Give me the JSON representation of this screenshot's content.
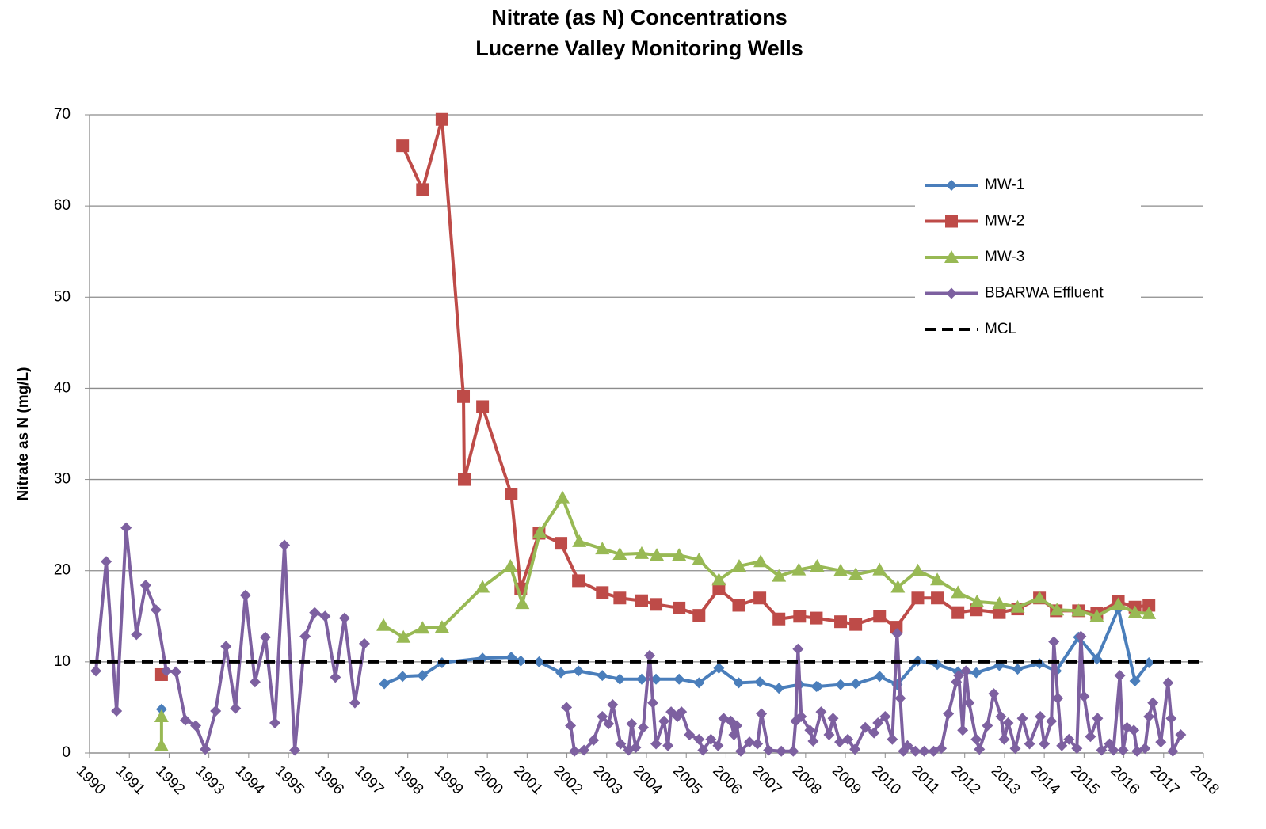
{
  "chart_data": {
    "type": "line",
    "title": "Nitrate (as N) Concentrations",
    "subtitle": "Lucerne Valley Monitoring Wells",
    "y_label": "Nitrate as N (mg/L)",
    "xlim": [
      1990,
      2018
    ],
    "xticks": [
      1990,
      1991,
      1992,
      1993,
      1994,
      1995,
      1996,
      1997,
      1998,
      1999,
      2000,
      2001,
      2002,
      2003,
      2004,
      2005,
      2006,
      2007,
      2008,
      2009,
      2010,
      2011,
      2012,
      2013,
      2014,
      2015,
      2016,
      2017,
      2018
    ],
    "ylim": [
      0,
      70
    ],
    "yticks": [
      0,
      10,
      20,
      30,
      40,
      50,
      60,
      70
    ],
    "grid": true,
    "legend": "upper right",
    "series": [
      {
        "name": "MW-1",
        "color": "#4a7ebb",
        "marker": "diamond",
        "x": [
          1991.81,
          null,
          1997.41,
          1997.87,
          1998.37,
          1998.86,
          1999.88,
          2000.6,
          2000.84,
          2001.3,
          2001.85,
          2002.29,
          2002.89,
          2003.33,
          2003.88,
          2004.24,
          2004.82,
          2005.32,
          2005.82,
          2006.32,
          2006.85,
          2007.33,
          2007.85,
          2008.27,
          2008.31,
          2008.88,
          2009.26,
          2009.86,
          2010.3,
          2010.82,
          2011.31,
          2011.83,
          2012.29,
          2012.87,
          2013.33,
          2013.88,
          2014.3,
          2014.86,
          2015.32,
          2015.86,
          2016.28,
          2016.63
        ],
        "values": [
          4.8,
          null,
          7.6,
          8.4,
          8.5,
          9.9,
          10.4,
          10.5,
          10.1,
          10.0,
          8.8,
          9.0,
          8.5,
          8.1,
          8.1,
          8.1,
          8.1,
          7.7,
          9.3,
          7.7,
          7.8,
          7.1,
          7.5,
          7.3,
          7.3,
          7.5,
          7.6,
          8.4,
          7.5,
          10.1,
          9.7,
          8.9,
          8.8,
          9.6,
          9.2,
          9.8,
          9.0,
          12.7,
          10.3,
          15.8,
          7.9,
          9.9
        ]
      },
      {
        "name": "MW-2",
        "color": "#be4b48",
        "marker": "square",
        "x": [
          1991.81,
          null,
          1997.87,
          1998.37,
          1998.86,
          1999.4,
          1999.42,
          1999.88,
          2000.6,
          2000.84,
          2001.3,
          2001.85,
          2002.29,
          2002.89,
          2003.33,
          2003.88,
          2004.24,
          2004.82,
          2005.32,
          2005.82,
          2006.32,
          2006.85,
          2007.33,
          2007.85,
          2008.27,
          2008.88,
          2009.26,
          2009.86,
          2010.28,
          2010.82,
          2011.31,
          2011.83,
          2012.29,
          2012.87,
          2013.33,
          2013.88,
          2014.3,
          2014.86,
          2015.32,
          2015.86,
          2016.28,
          2016.63
        ],
        "values": [
          8.6,
          null,
          66.6,
          61.8,
          69.5,
          39.1,
          30.0,
          38.0,
          28.4,
          18.0,
          24.1,
          23.0,
          18.9,
          17.6,
          17.0,
          16.7,
          16.3,
          15.9,
          15.1,
          18.0,
          16.2,
          17.0,
          14.7,
          15.0,
          14.8,
          14.4,
          14.1,
          15.0,
          13.8,
          17.0,
          17.0,
          15.4,
          15.7,
          15.4,
          15.8,
          17.0,
          15.6,
          15.6,
          15.3,
          16.6,
          16.0,
          16.2
        ]
      },
      {
        "name": "MW-3",
        "color": "#98b954",
        "marker": "triangle",
        "x": [
          1991.81,
          1991.81,
          null,
          1997.39,
          1997.89,
          1998.37,
          1998.86,
          1999.88,
          2000.58,
          2000.88,
          2001.32,
          2001.89,
          2002.31,
          2002.89,
          2003.33,
          2003.88,
          2004.26,
          2004.82,
          2005.32,
          2005.82,
          2006.33,
          2006.87,
          2007.33,
          2007.83,
          2008.29,
          2008.88,
          2009.26,
          2009.86,
          2010.32,
          2010.82,
          2011.31,
          2011.83,
          2012.31,
          2012.87,
          2013.33,
          2013.88,
          2014.32,
          2014.86,
          2015.32,
          2015.86,
          2016.28,
          2016.63
        ],
        "values": [
          4.0,
          0.8,
          null,
          14.0,
          12.7,
          13.7,
          13.8,
          18.2,
          20.5,
          16.4,
          24.2,
          28.0,
          23.2,
          22.4,
          21.8,
          21.9,
          21.7,
          21.7,
          21.2,
          19.0,
          20.5,
          21.0,
          19.4,
          20.1,
          20.5,
          20.0,
          19.6,
          20.1,
          18.2,
          20.0,
          19.0,
          17.6,
          16.6,
          16.4,
          16.0,
          17.0,
          15.7,
          15.6,
          15.0,
          16.3,
          15.4,
          15.3
        ]
      },
      {
        "name": "BBARWA Effluent",
        "color": "#7d60a0",
        "marker": "diamond",
        "x": [
          1990.16,
          1990.42,
          1990.68,
          1990.92,
          1991.18,
          1991.41,
          1991.67,
          1991.93,
          1992.17,
          1992.41,
          1992.67,
          1992.91,
          1993.17,
          1993.43,
          1993.67,
          1993.92,
          1994.16,
          1994.42,
          1994.66,
          1994.9,
          1995.16,
          1995.42,
          1995.66,
          1995.92,
          1996.18,
          1996.41,
          1996.67,
          1996.91,
          null,
          2001.99,
          2002.09,
          2002.19,
          2002.43,
          2002.67,
          2002.89,
          2003.05,
          2003.15,
          2003.35,
          2003.55,
          2003.63,
          2003.73,
          2003.92,
          2004.08,
          2004.16,
          2004.24,
          2004.44,
          2004.54,
          2004.62,
          2004.78,
          2004.88,
          2005.08,
          2005.32,
          2005.42,
          2005.62,
          2005.8,
          2005.94,
          2006.12,
          2006.2,
          2006.27,
          2006.37,
          2006.59,
          2006.79,
          2006.89,
          2007.07,
          2007.39,
          2007.69,
          2007.75,
          2007.81,
          2007.89,
          2008.11,
          2008.19,
          2008.39,
          2008.59,
          2008.69,
          2008.86,
          2009.06,
          2009.24,
          2009.5,
          2009.72,
          2009.82,
          2010.0,
          2010.18,
          2010.3,
          2010.38,
          2010.46,
          2010.56,
          2010.76,
          2010.98,
          2011.22,
          2011.41,
          2011.59,
          2011.79,
          2011.85,
          2011.95,
          2012.03,
          2012.11,
          2012.29,
          2012.37,
          2012.57,
          2012.73,
          2012.91,
          2012.99,
          2013.09,
          2013.27,
          2013.45,
          2013.63,
          2013.9,
          2014.0,
          2014.18,
          2014.24,
          2014.34,
          2014.44,
          2014.62,
          2014.82,
          2014.92,
          2015.0,
          2015.16,
          2015.34,
          2015.44,
          2015.64,
          2015.74,
          2015.9,
          2015.98,
          2016.08,
          2016.25,
          2016.33,
          2016.53,
          2016.63,
          2016.73,
          2016.93,
          2017.11,
          2017.19,
          2017.23,
          2017.43
        ],
        "values": [
          9,
          21,
          4.6,
          24.7,
          13,
          18.4,
          15.7,
          9,
          8.9,
          3.6,
          3,
          0.4,
          4.6,
          11.7,
          4.9,
          17.3,
          7.8,
          12.7,
          3.3,
          22.8,
          0.3,
          12.8,
          15.4,
          15,
          8.3,
          14.8,
          5.5,
          12,
          null,
          5,
          3,
          0.2,
          0.3,
          1.4,
          4,
          3.2,
          5.3,
          1,
          0.3,
          3.2,
          0.6,
          2.8,
          10.7,
          5.5,
          1,
          3.5,
          0.8,
          4.5,
          4,
          4.5,
          2,
          1.5,
          0.3,
          1.5,
          0.8,
          3.8,
          3.5,
          2,
          3,
          0.2,
          1.2,
          1,
          4.3,
          0.3,
          0.2,
          0.2,
          3.5,
          11.4,
          4,
          2.5,
          1.3,
          4.5,
          2,
          3.8,
          1.2,
          1.5,
          0.4,
          2.8,
          2.2,
          3.3,
          4,
          1.5,
          13.1,
          6,
          0.2,
          0.8,
          0.2,
          0.2,
          0.2,
          0.5,
          4.3,
          7.8,
          8.5,
          2.5,
          9,
          5.5,
          1.5,
          0.4,
          3,
          6.5,
          4,
          1.5,
          3.3,
          0.5,
          3.8,
          1,
          4,
          1,
          3.5,
          12.2,
          6,
          0.8,
          1.5,
          0.5,
          12.8,
          6.2,
          1.8,
          3.8,
          0.3,
          1,
          0.3,
          8.5,
          0.3,
          2.8,
          2.5,
          0.2,
          0.5,
          4,
          5.5,
          1.2,
          7.7,
          3.8,
          0.2,
          2
        ]
      },
      {
        "name": "MCL",
        "color": "#000000",
        "marker": "none",
        "dash": true,
        "x": [
          1990,
          2018
        ],
        "values": [
          10,
          10
        ]
      }
    ]
  }
}
